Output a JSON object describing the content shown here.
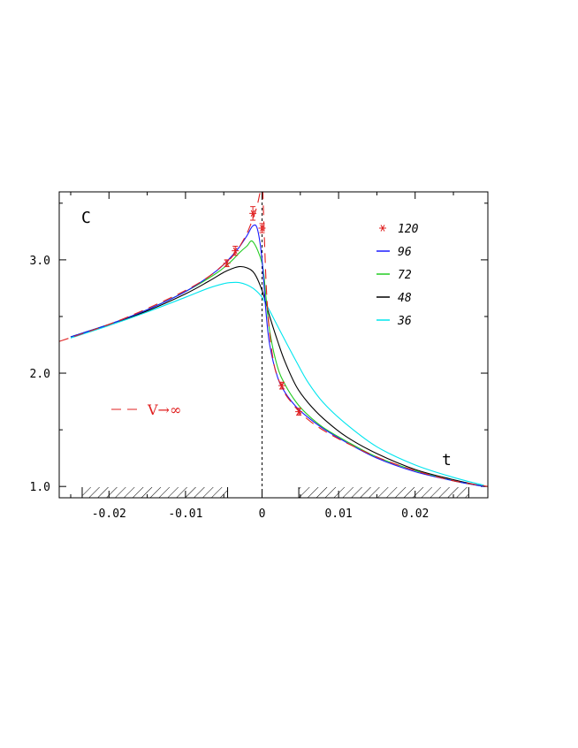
{
  "chart_data": {
    "type": "line",
    "ylabel": "C",
    "xlabel": "t",
    "xlim": [
      -0.0265,
      0.0295
    ],
    "ylim": [
      0.9,
      3.6
    ],
    "x_ticks": [
      {
        "value": -0.02,
        "label": "-0.02"
      },
      {
        "value": -0.01,
        "label": "-0.01"
      },
      {
        "value": 0,
        "label": "0"
      },
      {
        "value": 0.01,
        "label": "0.01"
      },
      {
        "value": 0.02,
        "label": "0.02"
      }
    ],
    "y_ticks": [
      {
        "value": 1.0,
        "label": "1.0"
      },
      {
        "value": 2.0,
        "label": "2.0"
      },
      {
        "value": 3.0,
        "label": "3.0"
      }
    ],
    "y_minor_ticks": [
      1.5,
      2.5,
      3.5
    ],
    "x_minor_ticks": [
      -0.025,
      -0.015,
      -0.005,
      0.005,
      0.015,
      0.025
    ],
    "hatched_ranges": [
      [
        -0.0235,
        -0.0045
      ],
      [
        0.0048,
        0.027
      ]
    ],
    "critical_line_x": 0,
    "series": [
      {
        "name": "120",
        "color": "#e02020",
        "marker": "asterisk",
        "points": [
          {
            "x": -0.0046,
            "y": 2.97,
            "err": 0.03
          },
          {
            "x": -0.0035,
            "y": 3.08,
            "err": 0.04
          },
          {
            "x": -0.0012,
            "y": 3.41,
            "err": 0.06
          },
          {
            "x": 0.0,
            "y": 3.28,
            "err": 0.04
          },
          {
            "x": 0.0026,
            "y": 1.89,
            "err": 0.03
          },
          {
            "x": 0.0048,
            "y": 1.66,
            "err": 0.03
          }
        ]
      },
      {
        "name": "96",
        "color": "#1a1aff",
        "x": [
          -0.025,
          -0.02,
          -0.015,
          -0.01,
          -0.006,
          -0.004,
          -0.003,
          -0.002,
          -0.0012,
          -0.0006,
          0.0,
          0.0005,
          0.001,
          0.002,
          0.003,
          0.0045,
          0.006,
          0.008,
          0.011,
          0.015,
          0.02,
          0.025,
          0.029
        ],
        "y": [
          2.32,
          2.43,
          2.56,
          2.72,
          2.9,
          3.03,
          3.11,
          3.21,
          3.3,
          3.27,
          3.0,
          2.55,
          2.25,
          1.97,
          1.83,
          1.7,
          1.61,
          1.51,
          1.39,
          1.25,
          1.13,
          1.05,
          1.0
        ]
      },
      {
        "name": "72",
        "color": "#22cc22",
        "x": [
          -0.025,
          -0.02,
          -0.015,
          -0.01,
          -0.006,
          -0.004,
          -0.003,
          -0.002,
          -0.0012,
          0.0,
          0.0005,
          0.001,
          0.002,
          0.003,
          0.0045,
          0.006,
          0.008,
          0.011,
          0.015,
          0.02,
          0.025,
          0.029
        ],
        "y": [
          2.32,
          2.43,
          2.56,
          2.72,
          2.88,
          2.99,
          3.06,
          3.12,
          3.16,
          2.97,
          2.68,
          2.37,
          2.06,
          1.9,
          1.74,
          1.63,
          1.52,
          1.4,
          1.26,
          1.14,
          1.05,
          1.0
        ]
      },
      {
        "name": "48",
        "color": "#000000",
        "x": [
          -0.025,
          -0.02,
          -0.015,
          -0.01,
          -0.007,
          -0.005,
          -0.004,
          -0.003,
          -0.002,
          -0.001,
          0.0,
          0.001,
          0.002,
          0.003,
          0.0045,
          0.006,
          0.008,
          0.011,
          0.015,
          0.02,
          0.025,
          0.029
        ],
        "y": [
          2.32,
          2.43,
          2.55,
          2.7,
          2.81,
          2.89,
          2.92,
          2.94,
          2.93,
          2.88,
          2.73,
          2.5,
          2.29,
          2.1,
          1.88,
          1.74,
          1.6,
          1.44,
          1.29,
          1.15,
          1.06,
          1.0
        ]
      },
      {
        "name": "36",
        "color": "#00e5ee",
        "x": [
          -0.025,
          -0.02,
          -0.015,
          -0.01,
          -0.007,
          -0.005,
          -0.004,
          -0.003,
          -0.002,
          -0.001,
          0.0,
          0.001,
          0.002,
          0.003,
          0.0045,
          0.006,
          0.008,
          0.011,
          0.015,
          0.02,
          0.025,
          0.029
        ],
        "y": [
          2.31,
          2.42,
          2.54,
          2.67,
          2.75,
          2.79,
          2.8,
          2.8,
          2.78,
          2.74,
          2.67,
          2.55,
          2.42,
          2.29,
          2.1,
          1.92,
          1.74,
          1.55,
          1.35,
          1.19,
          1.08,
          1.01
        ]
      },
      {
        "name": "V→∞",
        "color": "#e02020",
        "style": "dashed",
        "x": [
          -0.0265,
          -0.02,
          -0.015,
          -0.01,
          -0.007,
          -0.005,
          -0.004,
          -0.003,
          -0.002,
          -0.0015,
          -0.001,
          -0.0006,
          -0.0003,
          -0.0001
        ],
        "y": [
          2.28,
          2.43,
          2.57,
          2.73,
          2.85,
          2.96,
          3.02,
          3.11,
          3.23,
          3.31,
          3.4,
          3.49,
          3.58,
          3.62
        ],
        "x2": [
          0.0001,
          0.0003,
          0.0006,
          0.001,
          0.0015,
          0.002,
          0.003,
          0.004,
          0.005,
          0.007,
          0.01,
          0.015,
          0.02,
          0.025,
          0.0295
        ],
        "y2": [
          3.62,
          3.2,
          2.7,
          2.35,
          2.1,
          1.97,
          1.82,
          1.73,
          1.65,
          1.54,
          1.42,
          1.26,
          1.14,
          1.05,
          1.0
        ]
      }
    ],
    "legend_position": "top-right",
    "legend": [
      {
        "label": "120",
        "color": "#e02020",
        "marker": "asterisk"
      },
      {
        "label": "96",
        "color": "#1a1aff"
      },
      {
        "label": "72",
        "color": "#22cc22"
      },
      {
        "label": "48",
        "color": "#000000"
      },
      {
        "label": "36",
        "color": "#00e5ee"
      }
    ],
    "annotation_vinf": "V→∞"
  }
}
